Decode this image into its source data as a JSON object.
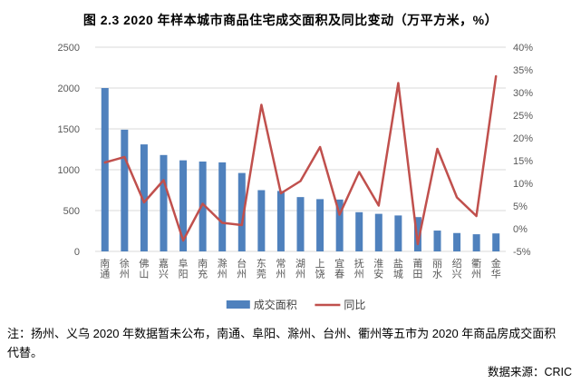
{
  "title": "图 2.3  2020 年样本城市商品住宅成交面积及同比变动（万平方米，%）",
  "chart_data": {
    "type": "bar+line combo",
    "categories": [
      "南通",
      "徐州",
      "佛山",
      "嘉兴",
      "阜阳",
      "南充",
      "滁州",
      "台州",
      "东莞",
      "常州",
      "湖州",
      "上饶",
      "宜春",
      "抚州",
      "淮安",
      "盐城",
      "莆田",
      "丽水",
      "绍兴",
      "衢州",
      "金华"
    ],
    "series": [
      {
        "name": "成交面积",
        "type": "bar",
        "axis": "left",
        "color": "#4F81BD",
        "values": [
          2000,
          1490,
          1310,
          1180,
          1115,
          1100,
          1090,
          960,
          750,
          740,
          665,
          640,
          635,
          480,
          460,
          440,
          420,
          255,
          225,
          210,
          220
        ]
      },
      {
        "name": "同比",
        "type": "line",
        "axis": "right",
        "color": "#C0504D",
        "values": [
          14.6,
          15.8,
          5.8,
          10.7,
          -2.6,
          5.5,
          1.3,
          0.8,
          27.3,
          7.8,
          10.5,
          18.0,
          3.1,
          12.5,
          5.1,
          32.1,
          -3.4,
          17.6,
          6.9,
          2.8,
          33.6
        ]
      }
    ],
    "left_axis": {
      "min": 0,
      "max": 2500,
      "tick_labels": [
        "0",
        "500",
        "1000",
        "1500",
        "2000",
        "2500"
      ]
    },
    "right_axis": {
      "min": -5,
      "max": 40,
      "tick_labels": [
        "-5%",
        "0%",
        "5%",
        "10%",
        "15%",
        "20%",
        "25%",
        "30%",
        "35%",
        "40%"
      ]
    },
    "grid": true,
    "gridline_color": "#D9D9D9",
    "axis_text_color": "#595959",
    "legend_position": "bottom",
    "title": "图 2.3  2020 年样本城市商品住宅成交面积及同比变动（万平方米，%）",
    "unit_note": "万平方米，%"
  },
  "footnote": {
    "lines": [
      "注：扬州、义乌 2020 年数据暂未公布，南通、阜阳、滁州、台州、衢州等五市为 2020 年商品房成交面积",
      "代替。"
    ]
  },
  "source": "数据来源：CRIC"
}
